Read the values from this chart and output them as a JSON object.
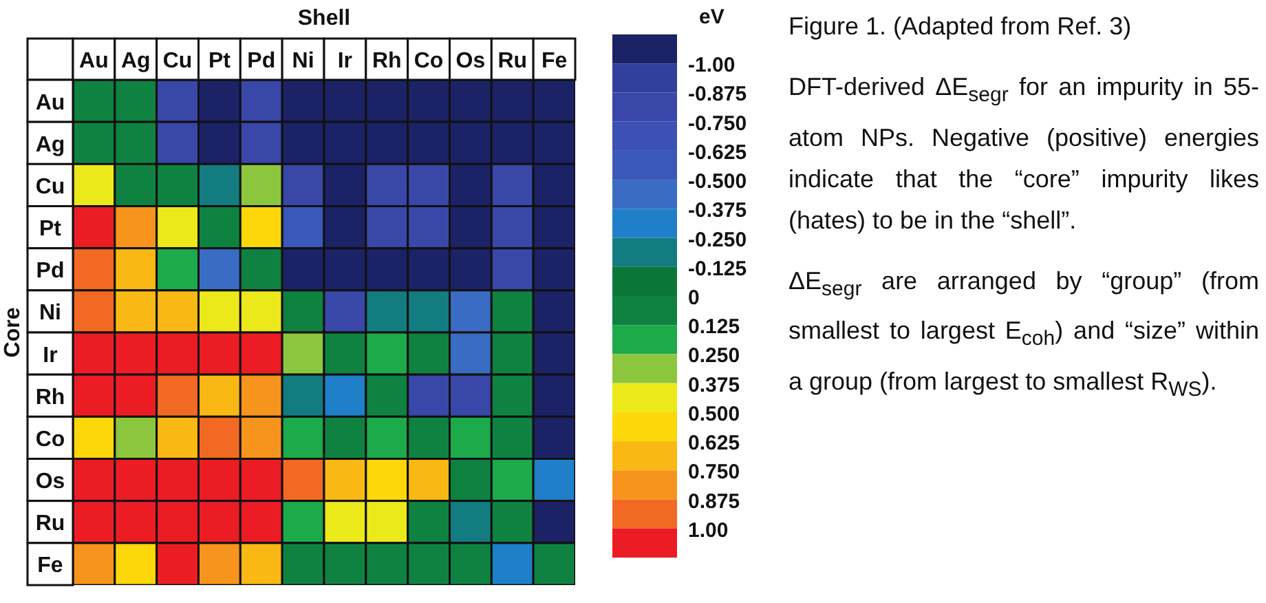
{
  "chart_data": {
    "type": "heatmap",
    "xlabel": "Shell",
    "ylabel": "Core",
    "clabel": "eV",
    "categories": [
      "Au",
      "Ag",
      "Cu",
      "Pt",
      "Pd",
      "Ni",
      "Ir",
      "Rh",
      "Co",
      "Os",
      "Ru",
      "Fe"
    ],
    "y_categories": [
      "Au",
      "Ag",
      "Cu",
      "Pt",
      "Pd",
      "Ni",
      "Ir",
      "Rh",
      "Co",
      "Os",
      "Ru",
      "Fe"
    ],
    "cells": [
      [
        0,
        0,
        -0.81,
        -1.06,
        -0.81,
        -1.06,
        -1.06,
        -1.06,
        -1.06,
        -1.06,
        -1.06,
        -1.06
      ],
      [
        0,
        0,
        -0.81,
        -1.06,
        -0.81,
        -1.06,
        -1.06,
        -1.06,
        -1.06,
        -1.06,
        -1.06,
        -1.06
      ],
      [
        0.44,
        0,
        0,
        -0.19,
        0.31,
        -0.81,
        -1.06,
        -0.81,
        -0.81,
        -1.06,
        -0.81,
        -1.06
      ],
      [
        1.06,
        0.81,
        0.44,
        0,
        0.56,
        -0.56,
        -1.06,
        -0.81,
        -0.81,
        -1.06,
        -0.81,
        -1.06
      ],
      [
        0.94,
        0.69,
        0.19,
        -0.44,
        0,
        -1.06,
        -1.06,
        -1.06,
        -1.06,
        -1.06,
        -0.81,
        -1.06
      ],
      [
        0.94,
        0.69,
        0.69,
        0.44,
        0.44,
        0,
        -0.81,
        -0.19,
        -0.19,
        -0.44,
        0,
        -1.06
      ],
      [
        1.06,
        1.06,
        1.06,
        1.06,
        1.06,
        0.31,
        0,
        0.19,
        0,
        -0.44,
        0,
        -1.06
      ],
      [
        1.06,
        1.06,
        0.94,
        0.69,
        0.81,
        -0.19,
        -0.31,
        0,
        -0.81,
        -0.81,
        0,
        -1.06
      ],
      [
        0.56,
        0.31,
        0.69,
        0.94,
        0.81,
        0.19,
        0,
        0.19,
        0,
        0.19,
        0,
        -1.06
      ],
      [
        1.06,
        1.06,
        1.06,
        1.06,
        1.06,
        0.94,
        0.69,
        0.56,
        0.69,
        0,
        0.19,
        -0.31
      ],
      [
        1.06,
        1.06,
        1.06,
        1.06,
        1.06,
        0.19,
        0.44,
        0.44,
        0,
        -0.19,
        0,
        -1.06
      ],
      [
        0.81,
        0.56,
        1.06,
        0.81,
        0.69,
        0,
        0,
        0,
        0,
        0,
        -0.31,
        0
      ]
    ],
    "clim": [
      -1.125,
      1.125
    ],
    "cticks": [
      {
        "value": -1,
        "label": "-1.00"
      },
      -0.875,
      {
        "value": -0.75,
        "label": "-0.750"
      },
      -0.625,
      {
        "value": -0.5,
        "label": "-0.500"
      },
      -0.375,
      {
        "value": -0.25,
        "label": "-0.250"
      },
      -0.125,
      0,
      0.125,
      {
        "value": 0.25,
        "label": "0.250"
      },
      0.375,
      {
        "value": 0.5,
        "label": "0.500"
      },
      0.625,
      {
        "value": 0.75,
        "label": "0.750"
      },
      0.875,
      {
        "value": 1,
        "label": "1.00"
      }
    ],
    "annotations": [
      "Figure 1. (Adapted from Ref. 3)",
      "DFT-derived ΔE$_{segr}$ for an impurity in 55-atom NPs. Negative (positive) energies indicate that the “core” impurity likes (hates) to be in the “shell”.",
      "ΔE$_{segr}$ are arranged by “group” (from smallest to largest E$_{coh}$) and “size” within a group (from largest to smallest R$_{WS}$)."
    ]
  }
}
